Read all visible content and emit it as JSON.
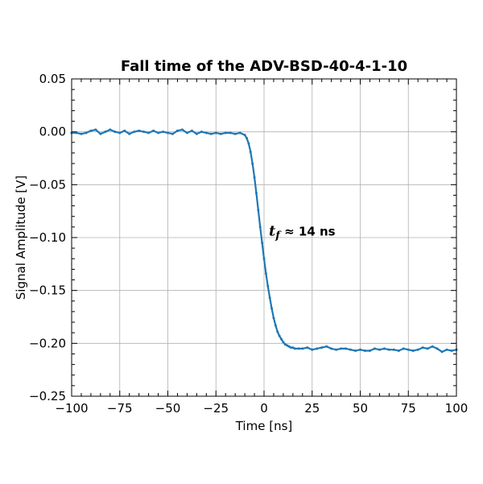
{
  "chart_data": {
    "type": "line",
    "title": "Fall time of the ADV-BSD-40-4-1-10",
    "xlabel": "Time  [ns]",
    "ylabel": "Signal Amplitude  [V]",
    "xlim": [
      -100,
      100
    ],
    "ylim": [
      -0.25,
      0.05
    ],
    "xticks": [
      -100,
      -75,
      -50,
      -25,
      0,
      25,
      50,
      75,
      100
    ],
    "xtick_labels": [
      "−100",
      "−75",
      "−50",
      "−25",
      "0",
      "25",
      "50",
      "75",
      "100"
    ],
    "yticks": [
      0.05,
      0.0,
      -0.05,
      -0.1,
      -0.15,
      -0.2,
      -0.25
    ],
    "ytick_labels": [
      "0.05",
      "0.00",
      "−0.05",
      "−0.10",
      "−0.15",
      "−0.20",
      "−0.25"
    ],
    "grid": true,
    "color": "#1f77b4",
    "annotation": {
      "var": "t",
      "sub": "f",
      "text": " ≈ 14 ns",
      "x": 2.5,
      "y": -0.098
    },
    "series": [
      {
        "x": [
          -100,
          -97.5,
          -95,
          -92.5,
          -90,
          -87.5,
          -85,
          -82.5,
          -80,
          -77.5,
          -75,
          -72.5,
          -70,
          -67.5,
          -65,
          -62.5,
          -60,
          -57.5,
          -55,
          -52.5,
          -50,
          -47.5,
          -45,
          -42.5,
          -40,
          -37.5,
          -35,
          -32.5,
          -30,
          -27.5,
          -25,
          -22.5,
          -20,
          -17.5,
          -15,
          -12.5,
          -10,
          -9,
          -8,
          -7,
          -6,
          -5,
          -4,
          -3,
          -2,
          -1,
          0,
          1,
          2,
          3,
          4,
          5,
          6,
          7,
          8,
          9,
          10,
          11,
          12,
          13,
          14,
          15,
          16,
          18,
          20,
          22.5,
          25,
          27.5,
          30,
          32.5,
          35,
          37.5,
          40,
          42.5,
          45,
          47.5,
          50,
          52.5,
          55,
          57.5,
          60,
          62.5,
          65,
          67.5,
          70,
          72.5,
          75,
          77.5,
          80,
          82.5,
          85,
          87.5,
          90,
          92.5,
          95,
          97.5,
          100
        ],
        "y": [
          -0.001,
          -0.001,
          -0.002,
          -0.001,
          0.001,
          0.002,
          -0.002,
          0.0,
          0.002,
          0.0,
          -0.001,
          0.001,
          -0.002,
          0.0,
          0.001,
          0.0,
          -0.001,
          0.001,
          -0.001,
          0.0,
          -0.001,
          -0.002,
          0.001,
          0.002,
          -0.001,
          0.001,
          -0.002,
          0.0,
          -0.001,
          -0.002,
          -0.001,
          -0.002,
          -0.001,
          -0.001,
          -0.002,
          -0.001,
          -0.003,
          -0.006,
          -0.011,
          -0.019,
          -0.03,
          -0.043,
          -0.058,
          -0.074,
          -0.09,
          -0.105,
          -0.12,
          -0.134,
          -0.146,
          -0.157,
          -0.167,
          -0.176,
          -0.183,
          -0.189,
          -0.193,
          -0.196,
          -0.199,
          -0.201,
          -0.202,
          -0.203,
          -0.204,
          -0.204,
          -0.205,
          -0.205,
          -0.205,
          -0.204,
          -0.206,
          -0.205,
          -0.204,
          -0.203,
          -0.205,
          -0.206,
          -0.205,
          -0.205,
          -0.206,
          -0.207,
          -0.206,
          -0.207,
          -0.207,
          -0.205,
          -0.206,
          -0.205,
          -0.206,
          -0.206,
          -0.207,
          -0.205,
          -0.206,
          -0.207,
          -0.206,
          -0.204,
          -0.205,
          -0.203,
          -0.205,
          -0.208,
          -0.206,
          -0.207,
          -0.206
        ]
      }
    ]
  }
}
